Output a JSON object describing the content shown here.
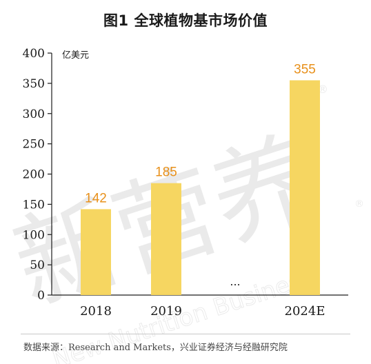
{
  "chart_data": {
    "type": "bar",
    "title": "图1  全球植物基市场价值",
    "ylabel": "亿美元",
    "xlabel": "",
    "categories": [
      "2018",
      "2019",
      "2024E"
    ],
    "values": [
      142,
      185,
      355
    ],
    "gap_marker": "...",
    "ylim": [
      0,
      400
    ],
    "yticks": [
      0,
      50,
      100,
      150,
      200,
      250,
      300,
      350,
      400
    ],
    "grid": false,
    "legend": "none",
    "bar_color": "#f6d661",
    "label_color": "#e8901a"
  },
  "watermark": {
    "brand": "新营养",
    "english": "New Nutrition Business",
    "mark": "®"
  },
  "source": "数据来源：Research and Markets，兴业证券经济与经融研究院"
}
